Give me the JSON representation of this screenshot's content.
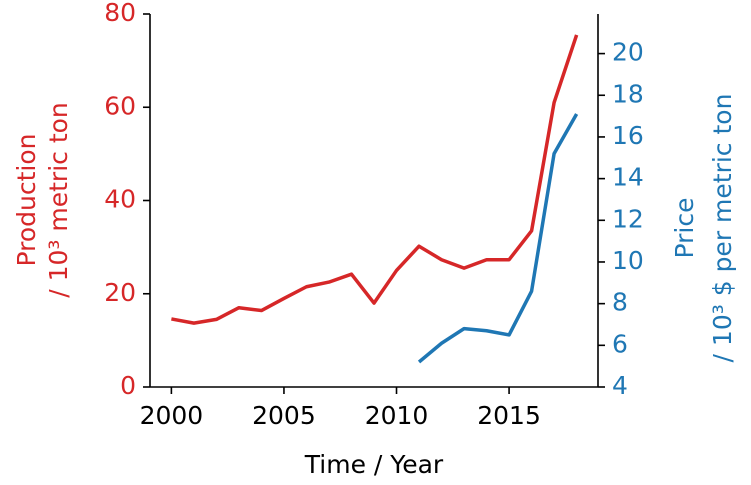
{
  "chart_data": {
    "type": "line",
    "xlabel": "Time / Year",
    "ylabel": [
      "Production",
      "/ 10³ metric ton"
    ],
    "y2label": [
      "Price",
      "/ 10³ $ per metric ton"
    ],
    "xlim": [
      1999.05,
      2018.95
    ],
    "xticks": [
      2000,
      2005,
      2010,
      2015
    ],
    "ylim": [
      0,
      80
    ],
    "yticks": [
      0,
      20,
      40,
      60,
      80
    ],
    "y2lim": [
      4,
      21.9
    ],
    "y2ticks": [
      4,
      6,
      8,
      10,
      12,
      14,
      16,
      18,
      20
    ],
    "ycolor": "#d62728",
    "y2color": "#1f77b4",
    "series": [
      {
        "color": "#d62728",
        "x": [
          2000,
          2001,
          2002,
          2003,
          2004,
          2005,
          2006,
          2007,
          2008,
          2009,
          2010,
          2011,
          2012,
          2013,
          2014,
          2015,
          2016,
          2017,
          2018
        ],
        "values": [
          14.6,
          13.7,
          14.5,
          17,
          16.4,
          19,
          21.5,
          22.5,
          24.2,
          18,
          25,
          30.2,
          27.3,
          25.5,
          27.3,
          27.3,
          33.5,
          61,
          75.5
        ]
      },
      {
        "color": "#1f77b4",
        "axis": "y2",
        "x": [
          2011,
          2012,
          2013,
          2014,
          2015,
          2016,
          2017,
          2018
        ],
        "values": [
          5.2,
          6.1,
          6.8,
          6.7,
          6.5,
          8.6,
          15.2,
          17.1
        ]
      }
    ]
  }
}
